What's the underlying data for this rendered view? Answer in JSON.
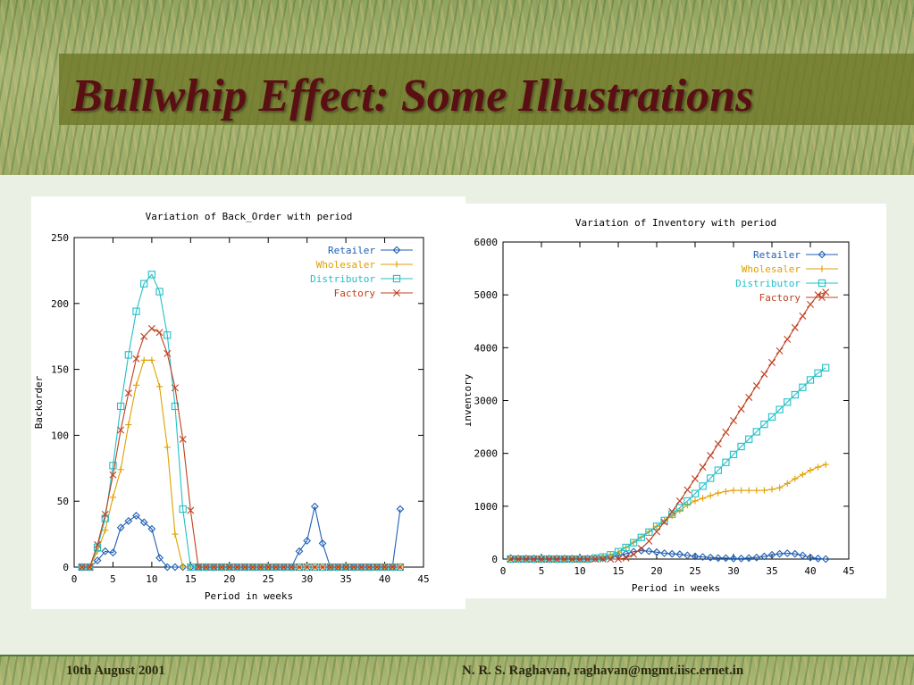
{
  "slide": {
    "title": "Bullwhip Effect: Some Illustrations",
    "footer_left": "10th August 2001",
    "footer_right": "N. R. S. Raghavan, raghavan@mgmt.iisc.ernet.in"
  },
  "series_colors": {
    "Retailer": "#1f5fb4",
    "Wholesaler": "#e0a000",
    "Distributor": "#20c0c8",
    "Factory": "#c04020"
  },
  "chart_data": [
    {
      "type": "line",
      "title": "Variation of Back_Order with period",
      "xlabel": "Period in weeks",
      "ylabel": "Backorder",
      "xlim": [
        0,
        45
      ],
      "ylim": [
        0,
        250
      ],
      "xticks": [
        0,
        5,
        10,
        15,
        20,
        25,
        30,
        35,
        40,
        45
      ],
      "yticks": [
        0,
        50,
        100,
        150,
        200,
        250
      ],
      "legend": "top-right",
      "grid": false,
      "x": [
        1,
        2,
        3,
        4,
        5,
        6,
        7,
        8,
        9,
        10,
        11,
        12,
        13,
        14,
        15,
        16,
        17,
        18,
        19,
        20,
        21,
        22,
        23,
        24,
        25,
        26,
        27,
        28,
        29,
        30,
        31,
        32,
        33,
        34,
        35,
        36,
        37,
        38,
        39,
        40,
        41,
        42
      ],
      "series": [
        {
          "name": "Retailer",
          "marker": "diamond",
          "values": [
            0,
            0,
            5,
            12,
            11,
            30,
            35,
            39,
            34,
            29,
            7,
            0,
            0,
            0,
            0,
            0,
            0,
            0,
            0,
            0,
            0,
            0,
            0,
            0,
            0,
            0,
            0,
            0,
            12,
            20,
            46,
            18,
            0,
            0,
            0,
            0,
            0,
            0,
            0,
            0,
            0,
            44
          ]
        },
        {
          "name": "Wholesaler",
          "marker": "plus",
          "values": [
            0,
            0,
            12,
            28,
            53,
            74,
            108,
            138,
            157,
            157,
            137,
            91,
            25,
            0,
            0,
            0,
            0,
            0,
            0,
            0,
            0,
            0,
            0,
            0,
            0,
            0,
            0,
            0,
            0,
            0,
            0,
            0,
            0,
            0,
            0,
            0,
            0,
            0,
            0,
            0,
            0,
            0
          ]
        },
        {
          "name": "Distributor",
          "marker": "square",
          "values": [
            0,
            0,
            15,
            37,
            77,
            122,
            161,
            194,
            215,
            222,
            209,
            176,
            122,
            44,
            0,
            0,
            0,
            0,
            0,
            0,
            0,
            0,
            0,
            0,
            0,
            0,
            0,
            0,
            0,
            0,
            0,
            0,
            0,
            0,
            0,
            0,
            0,
            0,
            0,
            0,
            0,
            0
          ]
        },
        {
          "name": "Factory",
          "marker": "cross",
          "values": [
            0,
            0,
            17,
            40,
            70,
            104,
            132,
            158,
            175,
            181,
            178,
            162,
            136,
            97,
            43,
            0,
            0,
            0,
            0,
            0,
            0,
            0,
            0,
            0,
            0,
            0,
            0,
            0,
            0,
            0,
            0,
            0,
            0,
            0,
            0,
            0,
            0,
            0,
            0,
            0,
            0,
            0
          ]
        }
      ]
    },
    {
      "type": "line",
      "title": "Variation of Inventory with period",
      "xlabel": "Period in weeks",
      "ylabel": "Inventory",
      "xlim": [
        0,
        45
      ],
      "ylim": [
        0,
        6000
      ],
      "xticks": [
        0,
        5,
        10,
        15,
        20,
        25,
        30,
        35,
        40,
        45
      ],
      "yticks": [
        0,
        1000,
        2000,
        3000,
        4000,
        5000,
        6000
      ],
      "legend": "top-right",
      "grid": false,
      "x": [
        1,
        2,
        3,
        4,
        5,
        6,
        7,
        8,
        9,
        10,
        11,
        12,
        13,
        14,
        15,
        16,
        17,
        18,
        19,
        20,
        21,
        22,
        23,
        24,
        25,
        26,
        27,
        28,
        29,
        30,
        31,
        32,
        33,
        34,
        35,
        36,
        37,
        38,
        39,
        40,
        41,
        42
      ],
      "series": [
        {
          "name": "Retailer",
          "marker": "diamond",
          "values": [
            20,
            10,
            10,
            10,
            10,
            10,
            10,
            10,
            10,
            10,
            10,
            10,
            20,
            40,
            60,
            100,
            140,
            160,
            150,
            130,
            110,
            100,
            90,
            70,
            50,
            40,
            30,
            20,
            20,
            10,
            10,
            20,
            30,
            50,
            80,
            100,
            110,
            100,
            70,
            30,
            10,
            0
          ]
        },
        {
          "name": "Wholesaler",
          "marker": "plus",
          "values": [
            0,
            0,
            0,
            0,
            0,
            0,
            0,
            0,
            0,
            0,
            0,
            20,
            50,
            80,
            130,
            220,
            320,
            420,
            520,
            620,
            720,
            820,
            920,
            1020,
            1100,
            1150,
            1200,
            1250,
            1280,
            1300,
            1300,
            1300,
            1300,
            1300,
            1320,
            1350,
            1430,
            1520,
            1600,
            1680,
            1740,
            1790
          ]
        },
        {
          "name": "Distributor",
          "marker": "square",
          "values": [
            0,
            0,
            0,
            0,
            0,
            0,
            0,
            0,
            0,
            0,
            0,
            20,
            40,
            80,
            140,
            220,
            310,
            410,
            510,
            620,
            730,
            850,
            970,
            1100,
            1240,
            1380,
            1530,
            1680,
            1830,
            1980,
            2130,
            2270,
            2410,
            2550,
            2690,
            2830,
            2970,
            3110,
            3250,
            3390,
            3520,
            3620
          ]
        },
        {
          "name": "Factory",
          "marker": "cross",
          "values": [
            0,
            0,
            0,
            0,
            0,
            0,
            0,
            0,
            0,
            0,
            0,
            0,
            0,
            0,
            0,
            20,
            90,
            200,
            340,
            520,
            700,
            900,
            1100,
            1310,
            1520,
            1740,
            1960,
            2180,
            2400,
            2620,
            2840,
            3060,
            3280,
            3500,
            3720,
            3940,
            4160,
            4380,
            4600,
            4820,
            5000,
            5050
          ]
        }
      ]
    }
  ]
}
